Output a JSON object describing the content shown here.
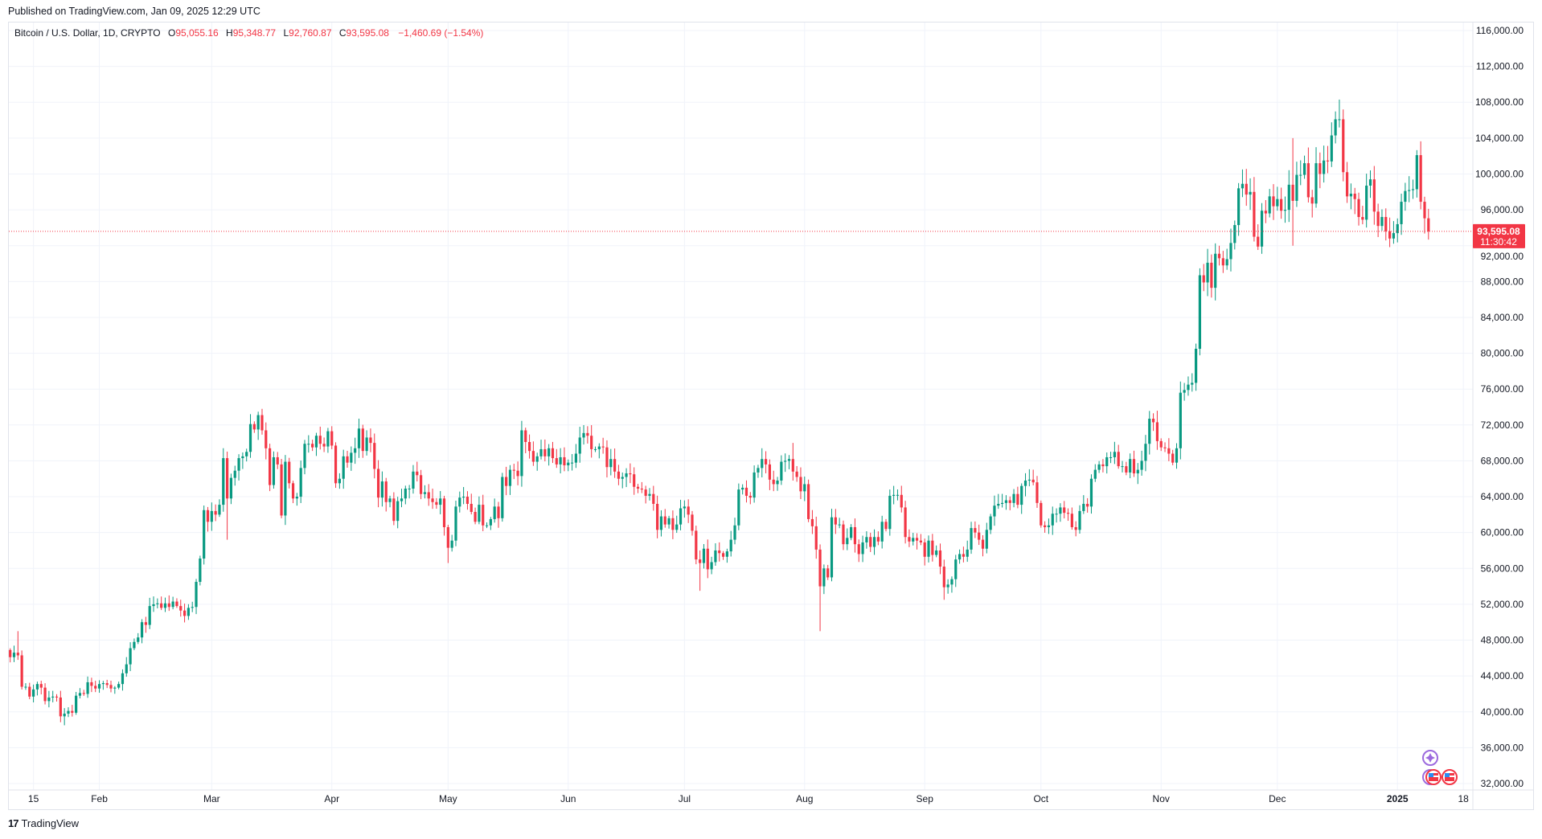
{
  "header": {
    "published": "Published on TradingView.com, Jan 09, 2025 12:29 UTC"
  },
  "legend": {
    "symbol": "Bitcoin / U.S. Dollar, 1D, CRYPTO",
    "open_label": "O",
    "open": "95,055.16",
    "high_label": "H",
    "high": "95,348.77",
    "low_label": "L",
    "low": "92,760.87",
    "close_label": "C",
    "close": "93,595.08",
    "change": "−1,460.69 (−1.54%)"
  },
  "footer": {
    "brand": "TradingView",
    "logo_icon": "tradingview-logo-icon"
  },
  "colors": {
    "up": "#089981",
    "down": "#f23645",
    "grid": "#f0f3fa",
    "price_line": "#f23645",
    "event_icon": "#9c6ade"
  },
  "chart_data": {
    "type": "candlestick",
    "interval": "1D",
    "start_date": "2024-01-09",
    "end_date": "2025-01-09",
    "y_axis": {
      "position": "right",
      "ylim": [
        32000,
        116000
      ],
      "tick_labels": [
        "116,000.00",
        "112,000.00",
        "108,000.00",
        "104,000.00",
        "100,000.00",
        "96,000.00",
        "92,000.00",
        "88,000.00",
        "84,000.00",
        "80,000.00",
        "76,000.00",
        "72,000.00",
        "68,000.00",
        "64,000.00",
        "60,000.00",
        "56,000.00",
        "52,000.00",
        "48,000.00",
        "44,000.00",
        "40,000.00",
        "36,000.00",
        "32,000.00"
      ],
      "tick_values": [
        116000,
        112000,
        108000,
        104000,
        100000,
        96000,
        92000,
        88000,
        84000,
        80000,
        76000,
        72000,
        68000,
        64000,
        60000,
        56000,
        52000,
        48000,
        44000,
        40000,
        36000,
        32000
      ]
    },
    "x_axis": {
      "tick_labels": [
        "15",
        "Feb",
        "Mar",
        "Apr",
        "May",
        "Jun",
        "Jul",
        "Aug",
        "Sep",
        "Oct",
        "Nov",
        "Dec",
        "2025",
        "18"
      ],
      "tick_dates": [
        "2024-01-15",
        "2024-02-01",
        "2024-03-01",
        "2024-04-01",
        "2024-05-01",
        "2024-06-01",
        "2024-07-01",
        "2024-08-01",
        "2024-09-01",
        "2024-10-01",
        "2024-11-01",
        "2024-12-01",
        "2025-01-01",
        "2025-01-18"
      ]
    },
    "grid": true,
    "last_price": {
      "value": 93595.08,
      "label": "93,595.08",
      "countdown": "11:30:42"
    },
    "first_open": 46900,
    "closes": [
      46100,
      46600,
      46300,
      42800,
      42800,
      41700,
      42500,
      43100,
      42700,
      41200,
      41600,
      41700,
      41600,
      39500,
      39800,
      40100,
      39900,
      41800,
      42100,
      42000,
      43300,
      42900,
      42600,
      43100,
      43200,
      43000,
      42600,
      42700,
      43100,
      44300,
      45300,
      47100,
      47800,
      48300,
      50000,
      49700,
      51800,
      52000,
      52100,
      51600,
      52100,
      51700,
      52300,
      51800,
      51300,
      50700,
      51600,
      51700,
      54500,
      57100,
      62500,
      61200,
      62400,
      62000,
      63100,
      68300,
      63800,
      66100,
      66900,
      68300,
      68500,
      69000,
      72100,
      71500,
      73100,
      71400,
      69400,
      65300,
      68400,
      67600,
      61900,
      67900,
      65500,
      63800,
      64000,
      67200,
      69900,
      69900,
      69500,
      70800,
      69900,
      69600,
      71300,
      69700,
      65500,
      66000,
      68500,
      67800,
      68900,
      69400,
      71600,
      69100,
      70600,
      70000,
      67100,
      63900,
      65700,
      63400,
      63800,
      61300,
      63500,
      63800,
      64900,
      64900,
      66800,
      66400,
      64300,
      64500,
      63800,
      63400,
      63100,
      63800,
      60600,
      58300,
      59100,
      62900,
      63900,
      64000,
      63200,
      62300,
      61200,
      63100,
      60800,
      60800,
      61500,
      62900,
      61600,
      66200,
      65200,
      67000,
      66900,
      66300,
      71400,
      70100,
      69100,
      67900,
      68500,
      69300,
      68500,
      69400,
      68300,
      67600,
      68400,
      67500,
      67800,
      67800,
      68800,
      70600,
      71100,
      70800,
      69300,
      69300,
      69600,
      69500,
      67300,
      68200,
      66800,
      66000,
      66200,
      66600,
      66500,
      65100,
      64900,
      64800,
      64100,
      64300,
      63200,
      60300,
      61800,
      60900,
      61600,
      60300,
      60900,
      62700,
      62900,
      62000,
      60200,
      57000,
      56600,
      58200,
      55900,
      56700,
      58000,
      57700,
      57300,
      57900,
      59200,
      60800,
      64800,
      65000,
      64100,
      63900,
      66700,
      67200,
      68200,
      67600,
      65900,
      65400,
      65800,
      67900,
      68000,
      68200,
      66800,
      66200,
      64600,
      65400,
      61500,
      60700,
      58100,
      54000,
      56000,
      55000,
      61700,
      60900,
      60900,
      58700,
      59400,
      60600,
      58700,
      57600,
      58900,
      59500,
      58400,
      59500,
      59000,
      61200,
      60400,
      64100,
      64200,
      64200,
      62800,
      59500,
      59000,
      59400,
      59100,
      58900,
      57300,
      59100,
      57500,
      58000,
      56200,
      53900,
      54200,
      54800,
      57000,
      57600,
      57300,
      58100,
      60500,
      60000,
      59200,
      58200,
      60300,
      61800,
      63000,
      63200,
      63300,
      63600,
      63300,
      64300,
      63100,
      65200,
      65800,
      65900,
      65600,
      63300,
      60800,
      60600,
      60800,
      62100,
      62100,
      62800,
      62200,
      62100,
      60600,
      60300,
      62400,
      63200,
      62900,
      66000,
      67000,
      67600,
      67400,
      68400,
      68400,
      69000,
      67400,
      67400,
      66700,
      68200,
      66600,
      67000,
      68000,
      69900,
      72700,
      72300,
      70200,
      69500,
      69400,
      68800,
      67800,
      69400,
      75600,
      75900,
      76500,
      76700,
      80500,
      88700,
      87900,
      90100,
      87300,
      91100,
      90600,
      89800,
      90500,
      92300,
      94300,
      98400,
      98900,
      97700,
      98000,
      93000,
      91900,
      95900,
      95600,
      97500,
      96400,
      97200,
      95900,
      96000,
      98800,
      97000,
      99900,
      99900,
      101200,
      97400,
      96700,
      101200,
      100000,
      101500,
      101400,
      104300,
      106100,
      106100,
      100200,
      97500,
      97800,
      97200,
      95200,
      94900,
      98700,
      99400,
      95800,
      94200,
      95200,
      93600,
      92800,
      93400,
      94400,
      96900,
      98100,
      98200,
      98300,
      102100,
      96900,
      95055,
      93595
    ],
    "notable_wicks": [
      {
        "date": "2024-01-11",
        "high": 49000
      },
      {
        "date": "2024-01-23",
        "low": 38500
      },
      {
        "date": "2024-03-05",
        "low": 59200
      },
      {
        "date": "2024-03-14",
        "high": 73800
      },
      {
        "date": "2024-05-01",
        "low": 56600
      },
      {
        "date": "2024-07-05",
        "low": 53500
      },
      {
        "date": "2024-07-29",
        "high": 70000
      },
      {
        "date": "2024-08-05",
        "low": 49000
      },
      {
        "date": "2024-09-06",
        "low": 52500
      },
      {
        "date": "2024-12-05",
        "high": 104000,
        "low": 92000
      },
      {
        "date": "2024-12-17",
        "high": 108300
      }
    ]
  }
}
